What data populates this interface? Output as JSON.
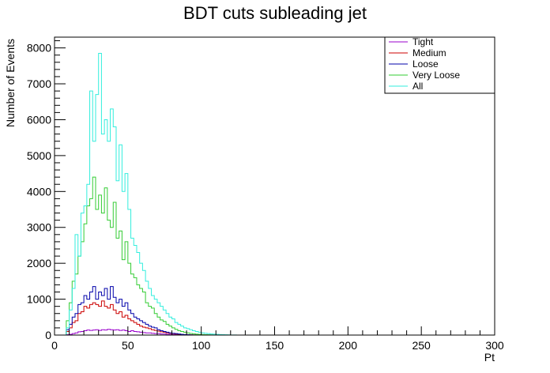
{
  "chart_data": {
    "type": "histogram",
    "title": "BDT cuts subleading jet",
    "xlabel": "Pt",
    "ylabel": "Number of Events",
    "xlim": [
      0,
      300
    ],
    "ylim": [
      0,
      8300
    ],
    "bin_width": 2,
    "x_ticks": [
      0,
      50,
      100,
      150,
      200,
      250,
      300
    ],
    "y_ticks": [
      0,
      1000,
      2000,
      3000,
      4000,
      5000,
      6000,
      7000,
      8000
    ],
    "grid": false,
    "legend_position": "top-right",
    "series": [
      {
        "name": "Tight",
        "color": "#9900cc",
        "values": [
          0,
          0,
          0,
          0,
          10,
          20,
          40,
          60,
          90,
          100,
          120,
          140,
          130,
          140,
          150,
          130,
          150,
          140,
          160,
          150,
          140,
          150,
          130,
          140,
          120,
          100,
          120,
          100,
          90,
          80,
          70,
          60,
          60,
          50,
          40,
          40,
          30,
          30,
          20,
          20,
          15,
          10,
          8,
          5,
          3,
          2,
          1,
          1
        ]
      },
      {
        "name": "Medium",
        "color": "#cc0000",
        "values": [
          0,
          0,
          0,
          0,
          100,
          200,
          350,
          400,
          600,
          650,
          800,
          750,
          850,
          900,
          850,
          800,
          950,
          800,
          750,
          850,
          700,
          600,
          650,
          500,
          550,
          450,
          400,
          350,
          300,
          250,
          220,
          200,
          180,
          150,
          130,
          110,
          90,
          80,
          60,
          50,
          40,
          30,
          20,
          15,
          10,
          8,
          5,
          3,
          2,
          1,
          1
        ]
      },
      {
        "name": "Loose",
        "color": "#0000aa",
        "values": [
          0,
          0,
          0,
          0,
          150,
          300,
          500,
          600,
          850,
          900,
          1100,
          1000,
          1200,
          1350,
          1000,
          1200,
          1100,
          1300,
          1000,
          1350,
          1050,
          900,
          1000,
          800,
          900,
          700,
          600,
          500,
          450,
          400,
          350,
          300,
          250,
          220,
          200,
          150,
          120,
          100,
          80,
          60,
          50,
          40,
          30,
          20,
          15,
          10,
          5,
          3,
          2,
          1,
          1
        ]
      },
      {
        "name": "Very Loose",
        "color": "#33cc33",
        "values": [
          0,
          0,
          0,
          0,
          400,
          900,
          1500,
          1700,
          2200,
          2600,
          3100,
          3600,
          3800,
          4400,
          3500,
          3900,
          3400,
          4100,
          3200,
          3000,
          3700,
          2700,
          2900,
          2100,
          2600,
          2000,
          1700,
          1600,
          1400,
          1300,
          1200,
          900,
          800,
          750,
          600,
          500,
          420,
          380,
          300,
          250,
          200,
          160,
          120,
          100,
          80,
          60,
          45,
          35,
          25,
          20,
          15,
          10,
          8,
          5,
          3,
          2,
          1,
          1
        ]
      },
      {
        "name": "All",
        "color": "#33eedd",
        "values": [
          0,
          0,
          0,
          0,
          200,
          700,
          1300,
          2800,
          2200,
          3400,
          3600,
          4200,
          6800,
          5400,
          6700,
          7850,
          5600,
          6000,
          5400,
          6300,
          5800,
          4300,
          5300,
          4000,
          4500,
          3500,
          2700,
          2500,
          2300,
          2000,
          1800,
          1500,
          1300,
          1100,
          1000,
          900,
          800,
          700,
          600,
          500,
          450,
          350,
          300,
          250,
          200,
          180,
          150,
          120,
          100,
          80,
          60,
          50,
          40,
          30,
          25,
          20,
          15,
          10,
          8,
          5,
          3,
          2,
          1,
          1,
          1
        ]
      }
    ]
  }
}
